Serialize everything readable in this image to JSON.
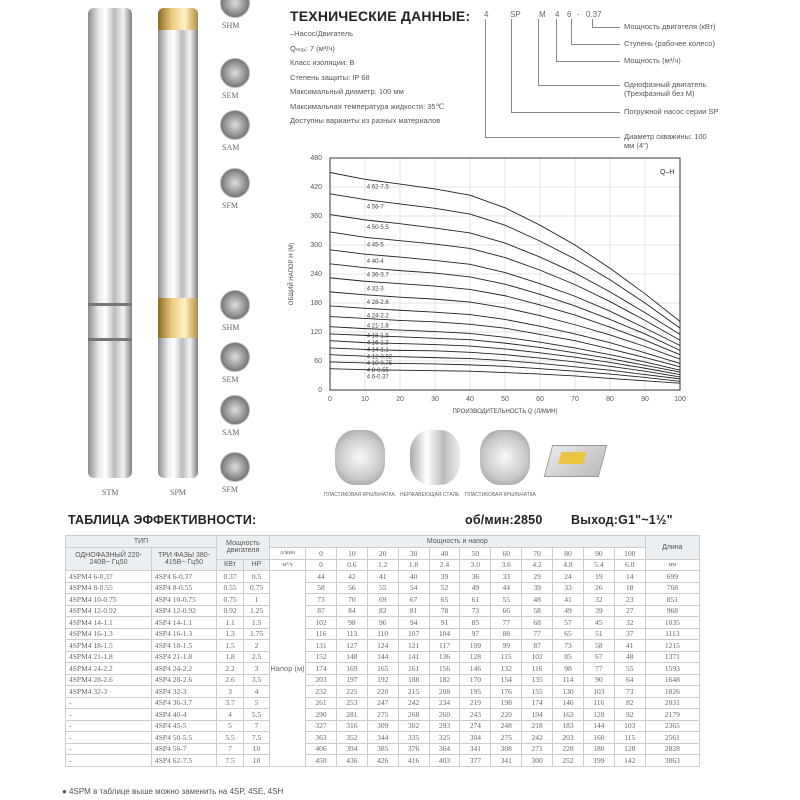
{
  "pumps": {
    "left_label": "STM",
    "right_label": "SPM",
    "variants_top": [
      "SHM",
      "SEM",
      "SAM",
      "SFM"
    ],
    "variants_bottom": [
      "SHM",
      "SEM",
      "SAM",
      "SFM"
    ]
  },
  "tech": {
    "title": "ТЕХНИЧЕСКИЕ ДАННЫЕ:",
    "lines": [
      "–Насос/Двигатель",
      "Qₘₐₓ: 7 (м³/ч)",
      "Класс изоляции:  B",
      "Степень защиты:  IP 68",
      "Максимальный диаметр:  100 мм",
      "Максимальная температура жидкости:  35℃",
      "Доступны варианты из разных материалов"
    ]
  },
  "code": {
    "parts": [
      "4",
      "SP",
      "M",
      "4",
      "6",
      "-",
      "0.37"
    ],
    "descriptions": [
      "Мощность двигателя (кВт)",
      "Ступень (рабочее колесо)",
      "Мощность (м³/ч)",
      "Однофазный двигатель (Трехфазный без M)",
      "Погружной насос серии SP",
      "Диаметр скважины: 100 мм (4\")"
    ]
  },
  "chart_data": {
    "type": "line",
    "title": "Q–H",
    "xlabel": "ПРОИЗВОДИТЕЛЬНОСТЬ Q (Л/МИН)",
    "ylabel": "ОБЩИЙ НАПОР H (М)",
    "xlim": [
      0,
      100
    ],
    "ylim": [
      0,
      480
    ],
    "xticks": [
      0,
      10,
      20,
      30,
      40,
      50,
      60,
      70,
      80,
      90,
      100
    ],
    "yticks": [
      0,
      60,
      120,
      180,
      240,
      300,
      360,
      420,
      480
    ],
    "grid": true,
    "x": [
      0,
      10,
      20,
      30,
      40,
      50,
      60,
      70,
      80,
      90,
      100
    ],
    "series": [
      {
        "name": "4 62-7.5",
        "values": [
          450,
          436,
          426,
          416,
          403,
          377,
          341,
          300,
          252,
          199,
          142
        ]
      },
      {
        "name": "4 56-7",
        "values": [
          406,
          394,
          385,
          376,
          364,
          341,
          308,
          271,
          228,
          180,
          128
        ]
      },
      {
        "name": "4 50-5.5",
        "values": [
          363,
          352,
          344,
          335,
          325,
          304,
          275,
          242,
          203,
          160,
          115
        ]
      },
      {
        "name": "4 45-5",
        "values": [
          327,
          316,
          309,
          302,
          293,
          274,
          248,
          218,
          183,
          144,
          103
        ]
      },
      {
        "name": "4 40-4",
        "values": [
          290,
          281,
          275,
          268,
          260,
          243,
          220,
          194,
          163,
          128,
          92
        ]
      },
      {
        "name": "4 36-3.7",
        "values": [
          261,
          253,
          247,
          242,
          234,
          219,
          198,
          174,
          146,
          116,
          82
        ]
      },
      {
        "name": "4 32-3",
        "values": [
          232,
          225,
          220,
          215,
          208,
          195,
          176,
          155,
          130,
          103,
          73
        ]
      },
      {
        "name": "4 28-2.6",
        "values": [
          203,
          197,
          192,
          188,
          182,
          170,
          154,
          135,
          114,
          90,
          64
        ]
      },
      {
        "name": "4 24-2.2",
        "values": [
          174,
          169,
          165,
          161,
          156,
          146,
          132,
          116,
          98,
          77,
          55
        ]
      },
      {
        "name": "4 21-1.8",
        "values": [
          152,
          148,
          144,
          141,
          136,
          128,
          115,
          102,
          85,
          67,
          48
        ]
      },
      {
        "name": "4 18-1.5",
        "values": [
          131,
          127,
          124,
          121,
          117,
          109,
          99,
          87,
          73,
          58,
          41
        ]
      },
      {
        "name": "4 16-1.3",
        "values": [
          116,
          113,
          110,
          107,
          104,
          97,
          88,
          77,
          65,
          51,
          37
        ]
      },
      {
        "name": "4 14-1.1",
        "values": [
          102,
          98,
          96,
          94,
          91,
          85,
          77,
          68,
          57,
          45,
          32
        ]
      },
      {
        "name": "4 12-0.92",
        "values": [
          87,
          84,
          82,
          81,
          78,
          73,
          66,
          58,
          49,
          39,
          27
        ]
      },
      {
        "name": "4 10-0.75",
        "values": [
          73,
          70,
          69,
          67,
          65,
          61,
          55,
          48,
          41,
          32,
          23
        ]
      },
      {
        "name": "4 8-0.55",
        "values": [
          58,
          56,
          55,
          54,
          52,
          49,
          44,
          39,
          33,
          26,
          18
        ]
      },
      {
        "name": "4 6-0.37",
        "values": [
          44,
          42,
          41,
          40,
          39,
          36,
          33,
          29,
          24,
          19,
          14
        ]
      }
    ]
  },
  "features": [
    "ПЛАСТИКОВАЯ КРЫЛЬЧАТКА",
    "НЕРЖАВЕЮЩАЯ СТАЛЬ",
    "ПЛАСТИКОВАЯ КРЫЛЬЧАТКА"
  ],
  "table": {
    "title": "ТАБЛИЦА ЭФФЕКТИВНОСТИ:",
    "rpm": "об/мин:2850",
    "outlet": "Выход:G1\"~1½\"",
    "h_type": "ТИП",
    "h_single": "ОДНОФАЗНЫЙ 220-240В~ Гц50",
    "h_three": "ТРИ ФАЗЫ 380-415В~ Гц50",
    "h_power": "Мощность двигателя",
    "h_kw": "КВт",
    "h_hp": "HP",
    "h_perf": "Мощность и напор",
    "h_len": "Длина",
    "h_lmin": "л/мин",
    "h_m3h": "м³/ч",
    "h_mm": "мм",
    "head_label": "Напор (м)",
    "lmin": [
      "0",
      "10",
      "20",
      "30",
      "40",
      "50",
      "60",
      "70",
      "80",
      "90",
      "100"
    ],
    "m3h": [
      "0",
      "0.6",
      "1.2",
      "1.8",
      "2.4",
      "3.0",
      "3.6",
      "4.2",
      "4.8",
      "5.4",
      "6.0"
    ],
    "rows": [
      [
        "4SPM4 6-0.37",
        "4SP4 6-0.37",
        "0.37",
        "0.5",
        [
          "44",
          "42",
          "41",
          "40",
          "39",
          "36",
          "33",
          "29",
          "24",
          "19",
          "14"
        ],
        "699"
      ],
      [
        "4SPM4 8-0.55",
        "4SP4 8-0.55",
        "0.55",
        "0.75",
        [
          "58",
          "56",
          "55",
          "54",
          "52",
          "49",
          "44",
          "39",
          "33",
          "26",
          "18"
        ],
        "768"
      ],
      [
        "4SPM4 10-0.75",
        "4SP4 10-0.75",
        "0.75",
        "1",
        [
          "73",
          "70",
          "69",
          "67",
          "65",
          "61",
          "55",
          "48",
          "41",
          "32",
          "23"
        ],
        "851"
      ],
      [
        "4SPM4 12-0.92",
        "4SP4 12-0.92",
        "0.92",
        "1.25",
        [
          "87",
          "84",
          "82",
          "81",
          "78",
          "73",
          "66",
          "58",
          "49",
          "39",
          "27"
        ],
        "968"
      ],
      [
        "4SPM4 14-1.1",
        "4SP4 14-1.1",
        "1.1",
        "1.5",
        [
          "102",
          "98",
          "96",
          "94",
          "91",
          "85",
          "77",
          "68",
          "57",
          "45",
          "32"
        ],
        "1035"
      ],
      [
        "4SPM4 16-1.3",
        "4SP4 16-1.3",
        "1.3",
        "1.75",
        [
          "116",
          "113",
          "110",
          "107",
          "104",
          "97",
          "88",
          "77",
          "65",
          "51",
          "37"
        ],
        "1113"
      ],
      [
        "4SPM4 18-1.5",
        "4SP4 18-1.5",
        "1.5",
        "2",
        [
          "131",
          "127",
          "124",
          "121",
          "117",
          "109",
          "99",
          "87",
          "73",
          "58",
          "41"
        ],
        "1215"
      ],
      [
        "4SPM4 21-1.8",
        "4SP4 21-1.8",
        "1.8",
        "2.5",
        [
          "152",
          "148",
          "144",
          "141",
          "136",
          "128",
          "115",
          "102",
          "85",
          "67",
          "48"
        ],
        "1371"
      ],
      [
        "4SPM4 24-2.2",
        "4SP4 24-2.2",
        "2.2",
        "3",
        [
          "174",
          "169",
          "165",
          "161",
          "156",
          "146",
          "132",
          "116",
          "98",
          "77",
          "55"
        ],
        "1593"
      ],
      [
        "4SPM4 28-2.6",
        "4SP4 28-2.6",
        "2.6",
        "3.5",
        [
          "203",
          "197",
          "192",
          "188",
          "182",
          "170",
          "154",
          "135",
          "114",
          "90",
          "64"
        ],
        "1648"
      ],
      [
        "4SPM4 32-3",
        "4SP4 32-3",
        "3",
        "4",
        [
          "232",
          "225",
          "220",
          "215",
          "208",
          "195",
          "176",
          "155",
          "130",
          "103",
          "73"
        ],
        "1826"
      ],
      [
        "-",
        "4SP4 36-3.7",
        "3.7",
        "5",
        [
          "261",
          "253",
          "247",
          "242",
          "234",
          "219",
          "198",
          "174",
          "146",
          "116",
          "82"
        ],
        "2031"
      ],
      [
        "-",
        "4SP4 40-4",
        "4",
        "5.5",
        [
          "290",
          "281",
          "275",
          "268",
          "260",
          "243",
          "220",
          "194",
          "163",
          "128",
          "92"
        ],
        "2179"
      ],
      [
        "-",
        "4SP4 45-5",
        "5",
        "7",
        [
          "327",
          "316",
          "309",
          "302",
          "293",
          "274",
          "248",
          "218",
          "183",
          "144",
          "103"
        ],
        "2365"
      ],
      [
        "-",
        "4SP4 50-5.5",
        "5.5",
        "7.5",
        [
          "363",
          "352",
          "344",
          "335",
          "325",
          "304",
          "275",
          "242",
          "203",
          "160",
          "115"
        ],
        "2561"
      ],
      [
        "-",
        "4SP4 56-7",
        "7",
        "10",
        [
          "406",
          "394",
          "385",
          "376",
          "364",
          "341",
          "308",
          "271",
          "228",
          "180",
          "128"
        ],
        "2828"
      ],
      [
        "-",
        "4SP4 62-7.5",
        "7.5",
        "10",
        [
          "450",
          "436",
          "426",
          "416",
          "403",
          "377",
          "341",
          "300",
          "252",
          "199",
          "142"
        ],
        "3063"
      ]
    ],
    "footnote": "● 4SPM в таблице выше можно заменить на 4SP, 4SE, 4SH"
  }
}
